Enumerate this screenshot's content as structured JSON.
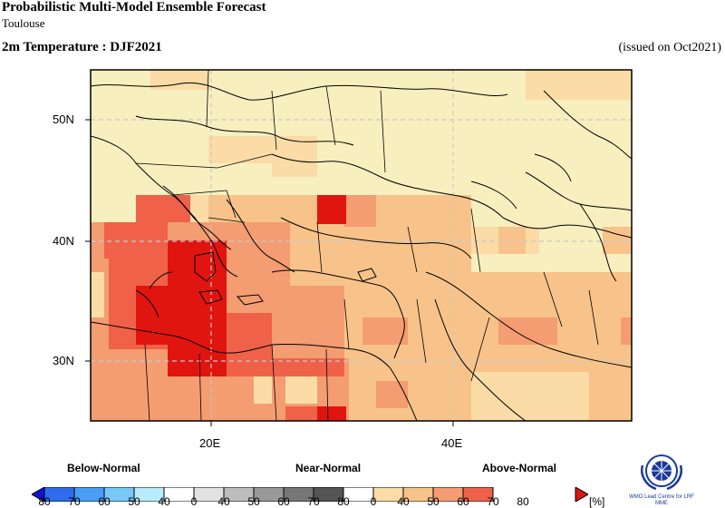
{
  "header": {
    "title": "Probabilistic Multi-Model Ensemble Forecast",
    "subtitle": "Toulouse",
    "variable": "2m Temperature : DJF2021",
    "issued": "(issued on Oct2021)"
  },
  "map": {
    "lat_labels": [
      "50N",
      "40N",
      "30N"
    ],
    "lon_labels": [
      "20E",
      "40E"
    ],
    "colors": {
      "background": "#f8efbf",
      "above_40": "#fbdca6",
      "above_50": "#f8c38a",
      "above_60": "#f49c72",
      "above_70": "#ef6249",
      "above_80": "#e01510"
    }
  },
  "legend": {
    "categories": [
      "Below-Normal",
      "Near-Normal",
      "Above-Normal"
    ],
    "below": {
      "labels": [
        "80",
        "70",
        "60",
        "50",
        "40"
      ],
      "colors": [
        "#1510d8",
        "#2e6cf0",
        "#4a9df5",
        "#78c8f8",
        "#b8ecfb"
      ]
    },
    "near": {
      "labels": [
        "0",
        "40",
        "50",
        "60",
        "70",
        "80"
      ],
      "colors": [
        "#ffffff",
        "#e2e2e2",
        "#bdbdbd",
        "#999999",
        "#777777",
        "#555555"
      ]
    },
    "above": {
      "labels": [
        "0",
        "40",
        "50",
        "60",
        "70",
        "80"
      ],
      "colors": [
        "#ffffff",
        "#fbdca6",
        "#f8c38a",
        "#f49c72",
        "#ef6249",
        "#e01510"
      ]
    },
    "unit": "[%]"
  },
  "logo": {
    "text": "WMO Lead Centre for LRF MME"
  }
}
